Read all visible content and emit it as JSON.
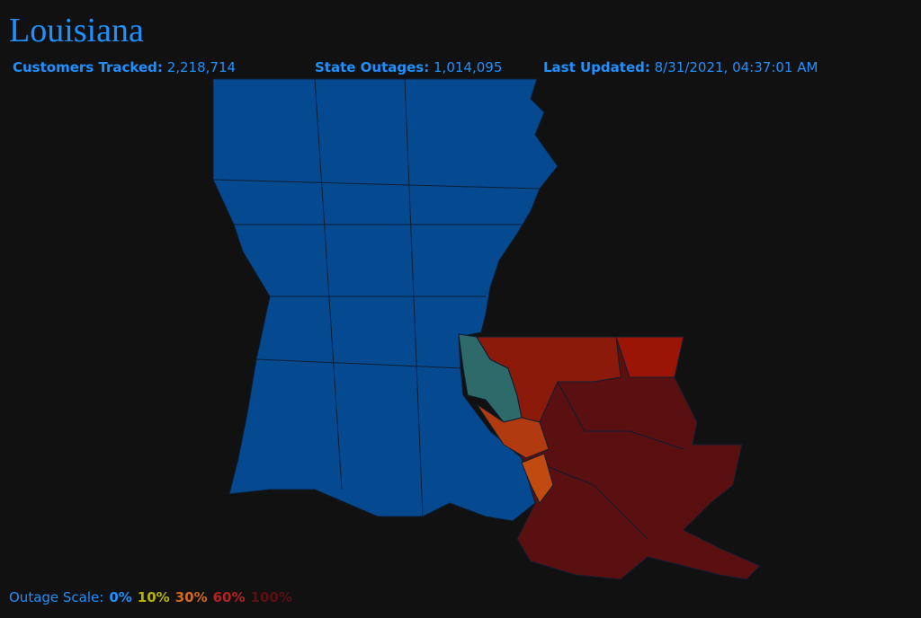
{
  "header": {
    "title": "Louisiana"
  },
  "stats": [
    {
      "label": "Customers Tracked:",
      "value": "2,218,714"
    },
    {
      "label": "State Outages:",
      "value": "1,014,095"
    },
    {
      "label": "Last Updated:",
      "value": "8/31/2021, 04:37:01 AM"
    }
  ],
  "legend": {
    "label": "Outage Scale:",
    "items": [
      {
        "text": "0%",
        "color": "#1e90ff"
      },
      {
        "text": "10%",
        "color": "#b8b400"
      },
      {
        "text": "30%",
        "color": "#d2691e"
      },
      {
        "text": "60%",
        "color": "#b22222"
      },
      {
        "text": "100%",
        "color": "#5a1010"
      }
    ]
  }
}
